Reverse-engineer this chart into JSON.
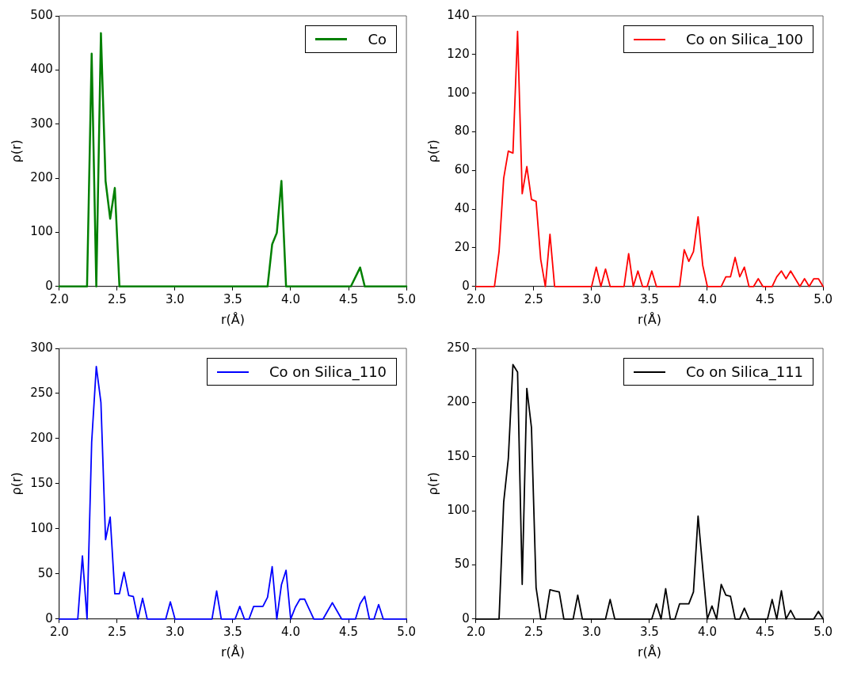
{
  "chart_data": [
    {
      "type": "line",
      "xlabel": "r(Å)",
      "ylabel": "ρ(r)",
      "xlim": [
        2,
        5
      ],
      "xticks": [
        {
          "value": 2,
          "label": "2.0"
        },
        {
          "value": 2.5,
          "label": "2.5"
        },
        {
          "value": 3,
          "label": "3.0"
        },
        {
          "value": 3.5,
          "label": "3.5"
        },
        {
          "value": 4,
          "label": "4.0"
        },
        {
          "value": 4.5,
          "label": "4.5"
        },
        {
          "value": 5,
          "label": "5.0"
        }
      ],
      "ylim": [
        0,
        500
      ],
      "yticks": [
        0,
        100,
        200,
        300,
        400,
        500
      ],
      "grid": false,
      "legend": "top right",
      "series": [
        {
          "name": "Co",
          "color": "#008000",
          "x": [
            2.0,
            2.24,
            2.28,
            2.32,
            2.36,
            2.4,
            2.44,
            2.48,
            2.52,
            3.8,
            3.84,
            3.88,
            3.92,
            3.96,
            4.52,
            4.6,
            4.64,
            5.0
          ],
          "values": [
            0,
            0,
            430,
            0,
            468,
            195,
            125,
            182,
            0,
            0,
            78,
            99,
            195,
            0,
            0,
            35,
            0,
            0
          ]
        }
      ]
    },
    {
      "type": "line",
      "xlabel": "r(Å)",
      "ylabel": "ρ(r)",
      "xlim": [
        2,
        5
      ],
      "xticks": [
        {
          "value": 2,
          "label": "2.0"
        },
        {
          "value": 2.5,
          "label": "2.5"
        },
        {
          "value": 3,
          "label": "3.0"
        },
        {
          "value": 3.5,
          "label": "3.5"
        },
        {
          "value": 4,
          "label": "4.0"
        },
        {
          "value": 4.5,
          "label": "4.5"
        },
        {
          "value": 5,
          "label": "5.0"
        }
      ],
      "ylim": [
        0,
        140
      ],
      "yticks": [
        0,
        20,
        40,
        60,
        80,
        100,
        120,
        140
      ],
      "grid": false,
      "legend": "top right",
      "series": [
        {
          "name": "Co on Silica_100",
          "color": "#ff0000",
          "x": [
            2.0,
            2.16,
            2.2,
            2.24,
            2.28,
            2.32,
            2.36,
            2.4,
            2.44,
            2.48,
            2.52,
            2.56,
            2.6,
            2.64,
            2.68,
            3.0,
            3.04,
            3.08,
            3.12,
            3.16,
            3.28,
            3.32,
            3.36,
            3.4,
            3.44,
            3.48,
            3.52,
            3.56,
            3.76,
            3.8,
            3.84,
            3.88,
            3.92,
            3.96,
            4.0,
            4.12,
            4.16,
            4.2,
            4.24,
            4.28,
            4.32,
            4.36,
            4.4,
            4.44,
            4.48,
            4.56,
            4.6,
            4.64,
            4.68,
            4.72,
            4.76,
            4.8,
            4.84,
            4.88,
            4.92,
            4.96,
            5.0
          ],
          "values": [
            0,
            0,
            18,
            56,
            70,
            69,
            132,
            48,
            62,
            45,
            44,
            14,
            0,
            27,
            0,
            0,
            10,
            0,
            9,
            0,
            0,
            17,
            0,
            8,
            0,
            0,
            8,
            0,
            0,
            19,
            13,
            18,
            36,
            11,
            0,
            0,
            5,
            5,
            15,
            5,
            10,
            0,
            0,
            4,
            0,
            0,
            5,
            8,
            4,
            8,
            4,
            0,
            4,
            0,
            4,
            4,
            0
          ]
        }
      ]
    },
    {
      "type": "line",
      "xlabel": "r(Å)",
      "ylabel": "ρ(r)",
      "xlim": [
        2,
        5
      ],
      "xticks": [
        {
          "value": 2,
          "label": "2.0"
        },
        {
          "value": 2.5,
          "label": "2.5"
        },
        {
          "value": 3,
          "label": "3.0"
        },
        {
          "value": 3.5,
          "label": "3.5"
        },
        {
          "value": 4,
          "label": "4.0"
        },
        {
          "value": 4.5,
          "label": "4.5"
        },
        {
          "value": 5,
          "label": "5.0"
        }
      ],
      "ylim": [
        0,
        300
      ],
      "yticks": [
        0,
        50,
        100,
        150,
        200,
        250,
        300
      ],
      "grid": false,
      "legend": "top right",
      "series": [
        {
          "name": "Co on Silica_110",
          "color": "#0000ff",
          "x": [
            2.0,
            2.16,
            2.2,
            2.24,
            2.28,
            2.32,
            2.36,
            2.4,
            2.44,
            2.48,
            2.52,
            2.56,
            2.6,
            2.64,
            2.68,
            2.72,
            2.76,
            2.92,
            2.96,
            3.0,
            3.32,
            3.36,
            3.4,
            3.52,
            3.56,
            3.6,
            3.64,
            3.68,
            3.72,
            3.76,
            3.8,
            3.84,
            3.88,
            3.92,
            3.96,
            4.0,
            4.04,
            4.08,
            4.12,
            4.16,
            4.2,
            4.28,
            4.32,
            4.36,
            4.4,
            4.44,
            4.56,
            4.6,
            4.64,
            4.68,
            4.72,
            4.76,
            4.8,
            5.0
          ],
          "values": [
            0,
            0,
            70,
            0,
            196,
            280,
            240,
            88,
            113,
            28,
            28,
            52,
            26,
            25,
            0,
            23,
            0,
            0,
            19,
            0,
            0,
            31,
            0,
            0,
            14,
            0,
            0,
            14,
            14,
            14,
            24,
            58,
            0,
            38,
            54,
            0,
            13,
            22,
            22,
            11,
            0,
            0,
            9,
            18,
            9,
            0,
            0,
            17,
            25,
            0,
            0,
            16,
            0,
            0
          ]
        }
      ]
    },
    {
      "type": "line",
      "xlabel": "r(Å)",
      "ylabel": "ρ(r)",
      "xlim": [
        2,
        5
      ],
      "xticks": [
        {
          "value": 2,
          "label": "2.0"
        },
        {
          "value": 2.5,
          "label": "2.5"
        },
        {
          "value": 3,
          "label": "3.0"
        },
        {
          "value": 3.5,
          "label": "3.5"
        },
        {
          "value": 4,
          "label": "4.0"
        },
        {
          "value": 4.5,
          "label": "4.5"
        },
        {
          "value": 5,
          "label": "5.0"
        }
      ],
      "ylim": [
        0,
        250
      ],
      "yticks": [
        0,
        50,
        100,
        150,
        200,
        250
      ],
      "grid": false,
      "legend": "top right",
      "series": [
        {
          "name": "Co on Silica_111",
          "color": "#000000",
          "x": [
            2.0,
            2.2,
            2.24,
            2.28,
            2.32,
            2.36,
            2.4,
            2.44,
            2.48,
            2.52,
            2.56,
            2.6,
            2.64,
            2.68,
            2.72,
            2.76,
            2.84,
            2.88,
            2.92,
            3.12,
            3.16,
            3.2,
            3.52,
            3.56,
            3.6,
            3.64,
            3.68,
            3.72,
            3.76,
            3.8,
            3.84,
            3.88,
            3.92,
            3.96,
            4.0,
            4.04,
            4.08,
            4.12,
            4.16,
            4.2,
            4.24,
            4.28,
            4.32,
            4.36,
            4.52,
            4.56,
            4.6,
            4.64,
            4.68,
            4.72,
            4.76,
            4.92,
            4.96,
            5.0
          ],
          "values": [
            0,
            0,
            108,
            148,
            235,
            228,
            32,
            213,
            177,
            29,
            0,
            0,
            27,
            26,
            25,
            0,
            0,
            22,
            0,
            0,
            18,
            0,
            0,
            14,
            0,
            28,
            0,
            0,
            14,
            14,
            14,
            25,
            95,
            47,
            0,
            12,
            0,
            32,
            22,
            21,
            0,
            0,
            10,
            0,
            0,
            18,
            0,
            26,
            0,
            8,
            0,
            0,
            7,
            0
          ]
        }
      ]
    }
  ]
}
